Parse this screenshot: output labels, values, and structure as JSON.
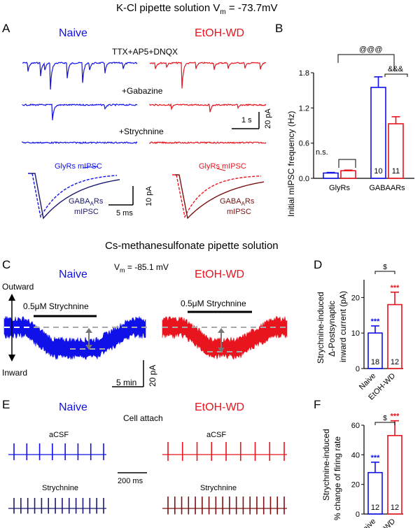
{
  "colors": {
    "naive": "#1010e8",
    "etoh": "#e8141e",
    "naive_dark": "#1a1a6e",
    "etoh_dark": "#7a1010",
    "gray": "#999999"
  },
  "header": {
    "title_pre": "K-Cl pipette solution V",
    "title_sub": "m",
    "title_post": " = -73.7mV"
  },
  "panelA": {
    "label": "A",
    "naive": "Naive",
    "etoh": "EtOH-WD",
    "cond1": "TTX+AP5+DNQX",
    "cond2": "+Gabazine",
    "cond3": "+Strychnine",
    "scale_time": "1 s",
    "scale_amp": "20 pA",
    "glyrs_naive": "GlyRs mIPSC",
    "glyrs_etoh": "GlyRs mIPSC",
    "gaba_pre": "GABA",
    "gaba_sub": "A",
    "gaba_post": "Rs",
    "mipsc": "mIPSC",
    "scale2_time": "5 ms",
    "scale2_amp": "10 pA"
  },
  "panelB": {
    "label": "B",
    "ylabel": "Initial mIPSC frequency (Hz)",
    "sig_top": "@@@",
    "sig_mid": "&&&",
    "sig_ns": "n.s.",
    "n_naive": "10",
    "n_etoh": "11"
  },
  "chart_data": [
    {
      "type": "bar",
      "panel": "B",
      "categories": [
        "GlyRs",
        "GABAARs"
      ],
      "ylim": [
        0,
        1.8
      ],
      "yticks": [
        "0.0",
        "0.6",
        "1.2",
        "1.8"
      ],
      "series": [
        {
          "name": "Naive",
          "values": [
            0.09,
            1.55
          ],
          "err": [
            0.01,
            0.18
          ]
        },
        {
          "name": "EtOH-WD",
          "values": [
            0.13,
            0.93
          ],
          "err": [
            0.01,
            0.12
          ]
        }
      ]
    },
    {
      "type": "bar",
      "panel": "D",
      "categories": [
        "Naive",
        "EtOH-WD"
      ],
      "values": [
        10,
        18
      ],
      "err": [
        2,
        3.5
      ],
      "ylim": [
        0,
        25
      ],
      "yticks": [
        "0",
        "10",
        "20"
      ],
      "n": [
        "18",
        "12"
      ],
      "stars": [
        "***",
        "***"
      ],
      "sig": "$",
      "ylabel": [
        "Strychnine-induced",
        "Δ-Postsynaptic",
        "inward current (pA)"
      ]
    },
    {
      "type": "bar",
      "panel": "F",
      "categories": [
        "Naive",
        "EtOH-WD"
      ],
      "values": [
        28,
        53
      ],
      "err": [
        7,
        10
      ],
      "ylim": [
        0,
        60
      ],
      "yticks": [
        "0",
        "20",
        "40",
        "60"
      ],
      "n": [
        "12",
        "12"
      ],
      "stars": [
        "***",
        "***"
      ],
      "sig": "$",
      "ylabel": [
        "Strychnine-induced",
        "% change of firing rate"
      ]
    }
  ],
  "section2": {
    "title": "Cs-methanesulfonate pipette solution"
  },
  "panelC": {
    "label": "C",
    "vm_pre": "V",
    "vm_sub": "m",
    "vm_post": " = -85.1 mV",
    "naive": "Naive",
    "etoh": "EtOH-WD",
    "outward": "Outward",
    "inward": "Inward",
    "drug_naive": "0.5μM Strychnine",
    "drug_etoh": "0.5μM Strychnine",
    "scale_time": "5 min",
    "scale_amp": "20 pA"
  },
  "panelD": {
    "label": "D"
  },
  "panelE": {
    "label": "E",
    "naive": "Naive",
    "etoh": "EtOH-WD",
    "cell": "Cell attach",
    "acsf_naive": "aCSF",
    "acsf_etoh": "aCSF",
    "str_naive": "Strychnine",
    "str_etoh": "Strychnine",
    "scale_time": "200 ms"
  },
  "panelF": {
    "label": "F"
  }
}
